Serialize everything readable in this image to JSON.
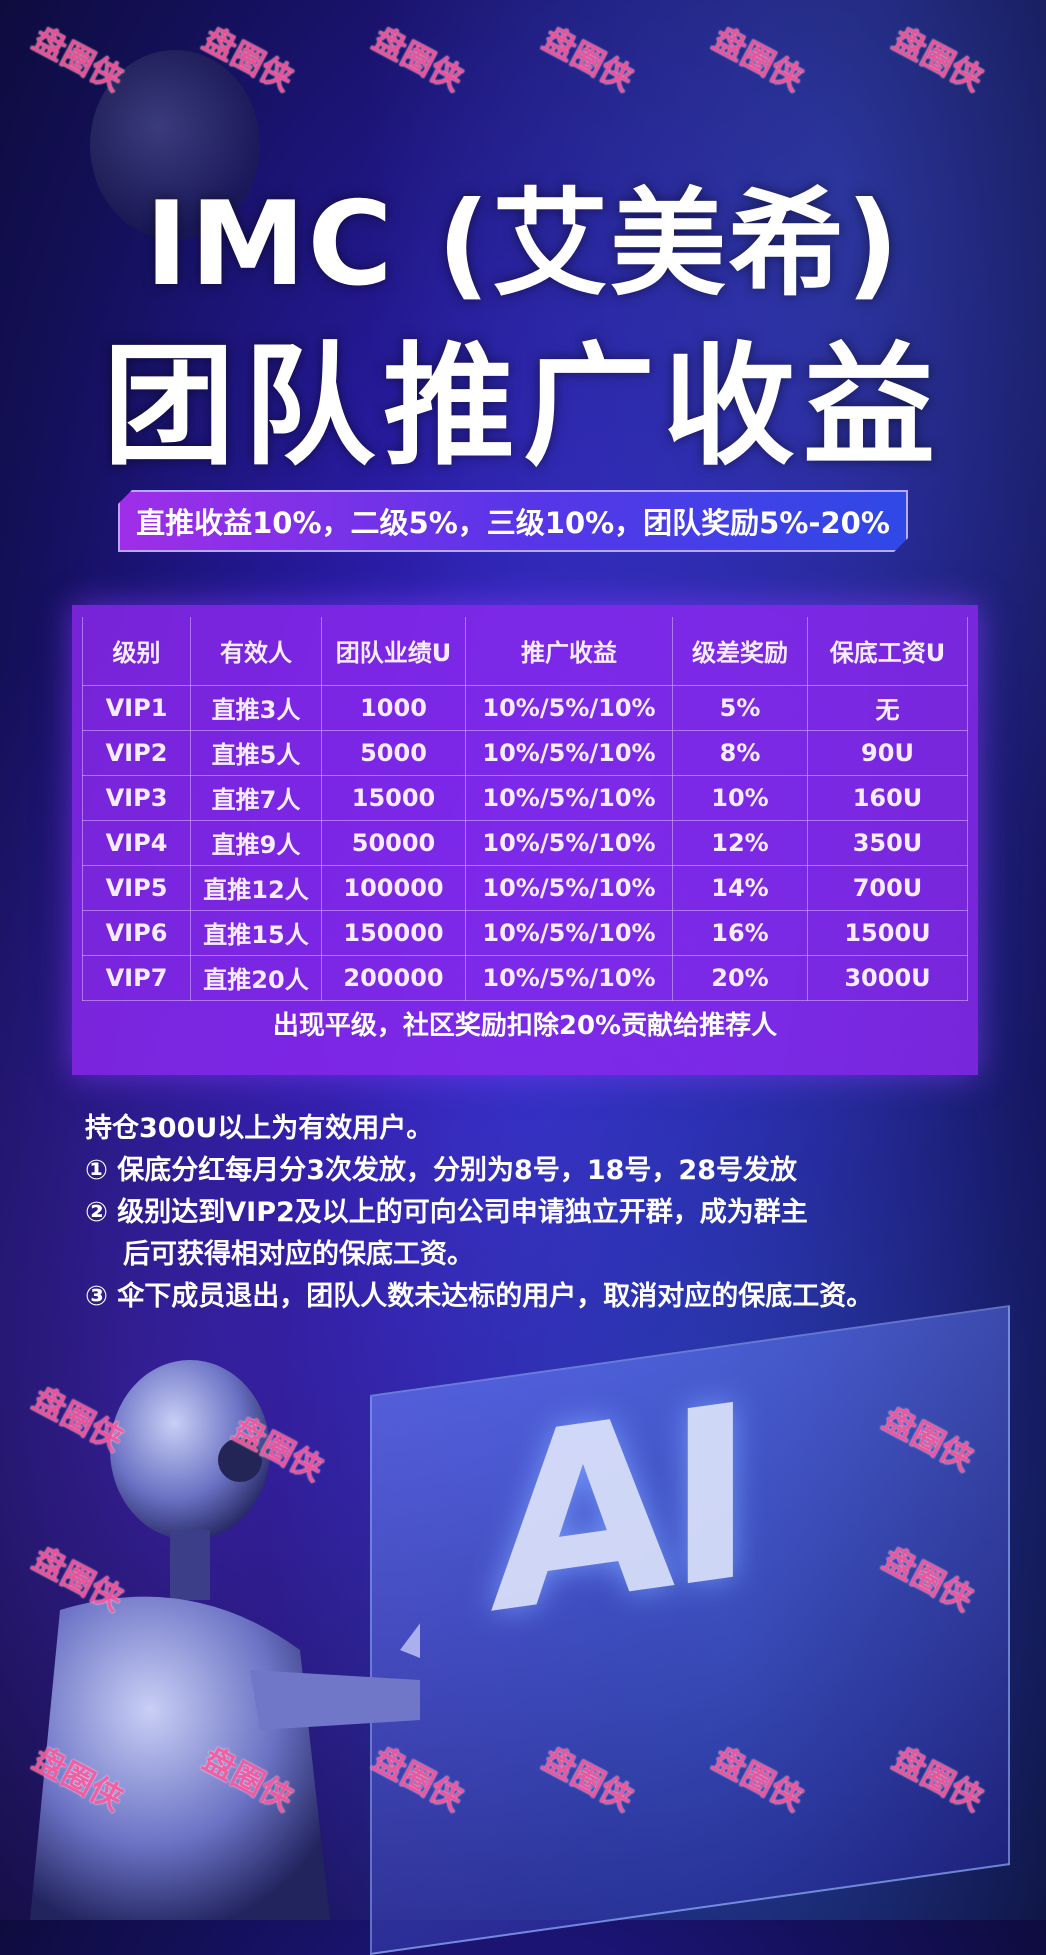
{
  "title_line1": "IMC (艾美希)",
  "title_line2": "团队推广收益",
  "banner": "直推收益10%，二级5%，三级10%，团队奖励5%-20%",
  "table": {
    "headers": [
      "级别",
      "有效人",
      "团队业绩U",
      "推广收益",
      "级差奖励",
      "保底工资U"
    ],
    "rows": [
      [
        "VIP1",
        "直推3人",
        "1000",
        "10%/5%/10%",
        "5%",
        "无"
      ],
      [
        "VIP2",
        "直推5人",
        "5000",
        "10%/5%/10%",
        "8%",
        "90U"
      ],
      [
        "VIP3",
        "直推7人",
        "15000",
        "10%/5%/10%",
        "10%",
        "160U"
      ],
      [
        "VIP4",
        "直推9人",
        "50000",
        "10%/5%/10%",
        "12%",
        "350U"
      ],
      [
        "VIP5",
        "直推12人",
        "100000",
        "10%/5%/10%",
        "14%",
        "700U"
      ],
      [
        "VIP6",
        "直推15人",
        "150000",
        "10%/5%/10%",
        "16%",
        "1500U"
      ],
      [
        "VIP7",
        "直推20人",
        "200000",
        "10%/5%/10%",
        "20%",
        "3000U"
      ]
    ],
    "footer": "出现平级，社区奖励扣除20%贡献给推荐人"
  },
  "rules": {
    "intro": "持仓300U以上为有效用户。",
    "items": [
      "① 保底分红每月分3次发放，分别为8号，18号，28号发放",
      "② 级别达到VIP2及以上的可向公司申请独立开群，成为群主",
      "后可获得相对应的保底工资。",
      "③ 伞下成员退出，团队人数未达标的用户，取消对应的保底工资。"
    ]
  },
  "background_text": "AI",
  "watermark": "盘圈侠"
}
